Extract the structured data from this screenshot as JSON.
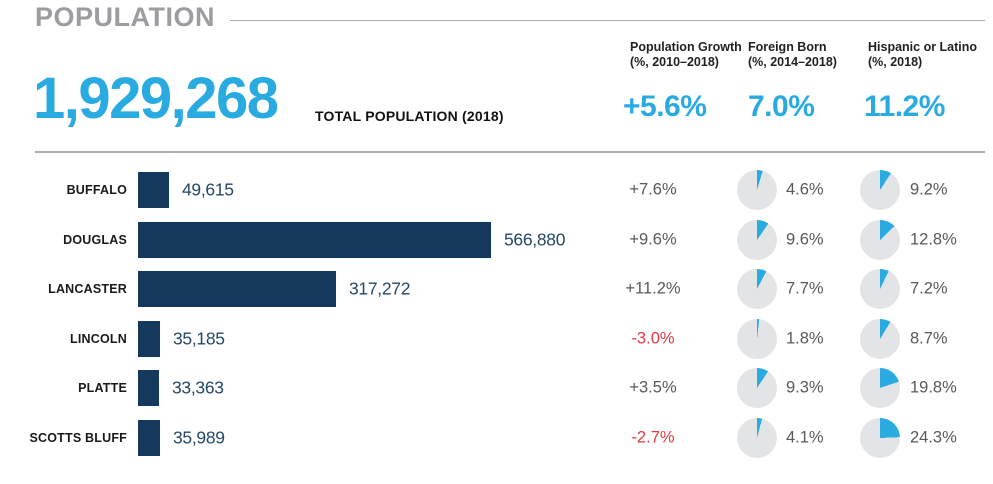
{
  "page": {
    "title": "POPULATION"
  },
  "colors": {
    "accent": "#29abe2",
    "bar": "#14395c",
    "negative": "#e0393e",
    "text_gray": "#58595b",
    "pie_bg": "#e3e4e6"
  },
  "summary": {
    "total_value": "1,929,268",
    "total_label": "TOTAL POPULATION (2018)",
    "columns": [
      {
        "label_line1": "Population Growth",
        "label_line2": "(%, 2010–2018)",
        "value": "+5.6%"
      },
      {
        "label_line1": "Foreign Born",
        "label_line2": "(%, 2014–2018)",
        "value": "7.0%"
      },
      {
        "label_line1": "Hispanic or Latino",
        "label_line2": "(%, 2018)",
        "value": "11.2%"
      }
    ]
  },
  "chart_data": {
    "type": "bar",
    "orientation": "horizontal",
    "title": "POPULATION",
    "total_population_2018": 1929268,
    "categories": [
      "BUFFALO",
      "DOUGLAS",
      "LANCASTER",
      "LINCOLN",
      "PLATTE",
      "SCOTTS BLUFF"
    ],
    "series": [
      {
        "name": "Total Population (2018)",
        "values": [
          49615,
          566880,
          317272,
          35185,
          33363,
          35989
        ]
      },
      {
        "name": "Population Growth (%, 2010–2018)",
        "values": [
          7.6,
          9.6,
          11.2,
          -3.0,
          3.5,
          -2.7
        ],
        "state_total": 5.6
      },
      {
        "name": "Foreign Born (%, 2014–2018)",
        "values": [
          4.6,
          9.6,
          7.7,
          1.8,
          9.3,
          4.1
        ],
        "state_total": 7.0
      },
      {
        "name": "Hispanic or Latino (%, 2018)",
        "values": [
          9.2,
          12.8,
          7.2,
          8.7,
          19.8,
          24.3
        ],
        "state_total": 11.2
      }
    ],
    "legend": "none",
    "grid": false
  },
  "rows": [
    {
      "county": "BUFFALO",
      "population": 49615,
      "population_display": "49,615",
      "growth": "+7.6%",
      "foreign_born_pct": 4.6,
      "foreign_born_display": "4.6%",
      "hispanic_pct": 9.2,
      "hispanic_display": "9.2%"
    },
    {
      "county": "DOUGLAS",
      "population": 566880,
      "population_display": "566,880",
      "growth": "+9.6%",
      "foreign_born_pct": 9.6,
      "foreign_born_display": "9.6%",
      "hispanic_pct": 12.8,
      "hispanic_display": "12.8%"
    },
    {
      "county": "LANCASTER",
      "population": 317272,
      "population_display": "317,272",
      "growth": "+11.2%",
      "foreign_born_pct": 7.7,
      "foreign_born_display": "7.7%",
      "hispanic_pct": 7.2,
      "hispanic_display": "7.2%"
    },
    {
      "county": "LINCOLN",
      "population": 35185,
      "population_display": "35,185",
      "growth": "-3.0%",
      "foreign_born_pct": 1.8,
      "foreign_born_display": "1.8%",
      "hispanic_pct": 8.7,
      "hispanic_display": "8.7%"
    },
    {
      "county": "PLATTE",
      "population": 33363,
      "population_display": "33,363",
      "growth": "+3.5%",
      "foreign_born_pct": 9.3,
      "foreign_born_display": "9.3%",
      "hispanic_pct": 19.8,
      "hispanic_display": "19.8%"
    },
    {
      "county": "SCOTTS BLUFF",
      "population": 35989,
      "population_display": "35,989",
      "growth": "-2.7%",
      "foreign_born_pct": 4.1,
      "foreign_born_display": "4.1%",
      "hispanic_pct": 24.3,
      "hispanic_display": "24.3%"
    }
  ]
}
